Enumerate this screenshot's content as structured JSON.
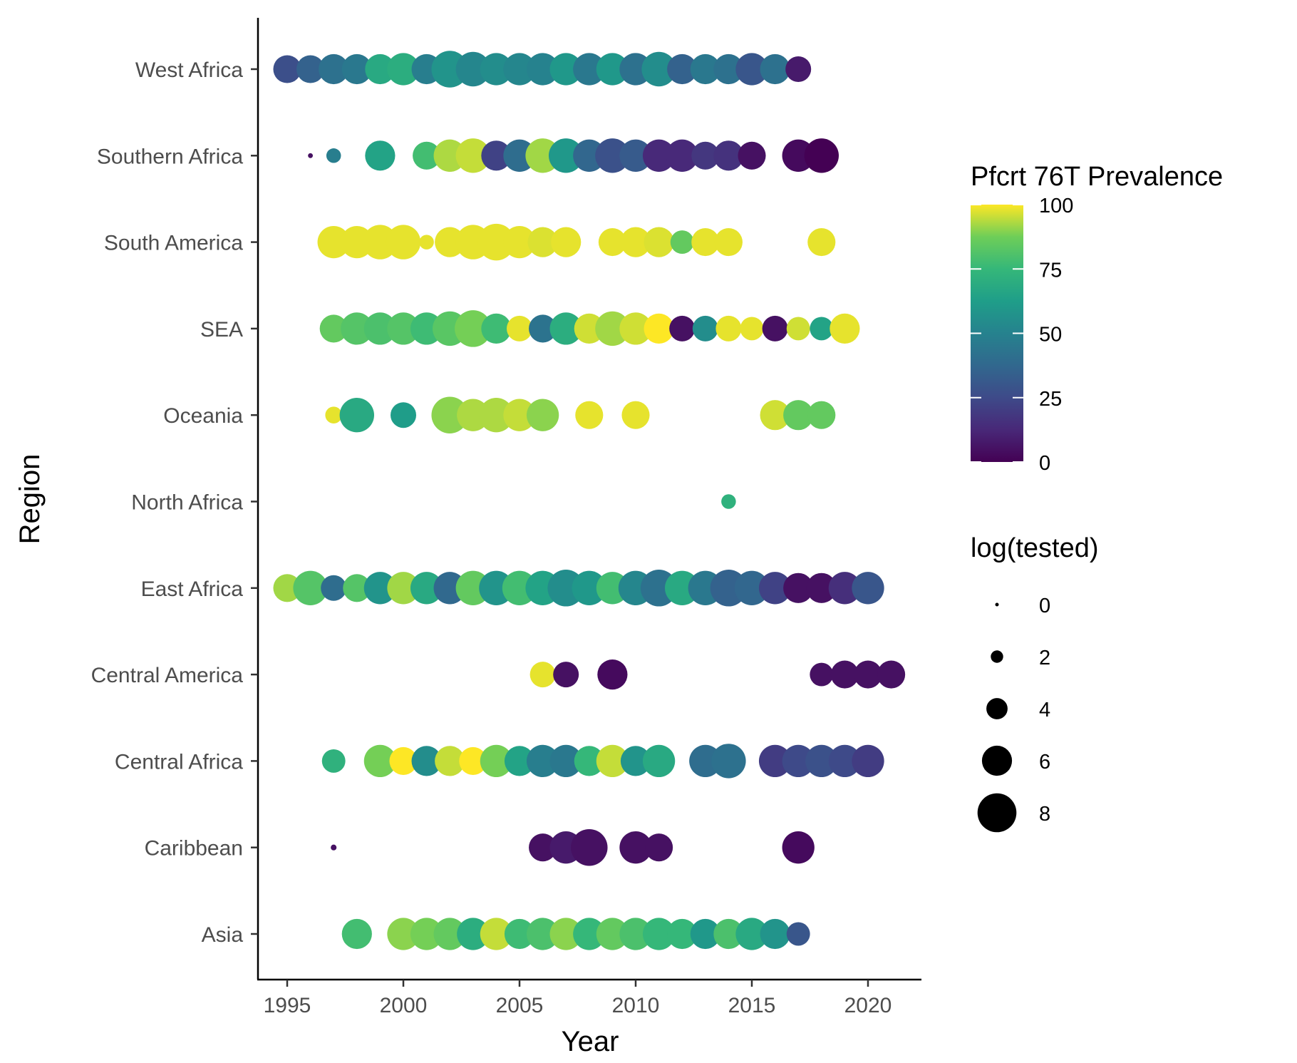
{
  "chart_data": {
    "type": "scatter",
    "xlabel": "Year",
    "ylabel": "Region",
    "xlim": [
      1993.8,
      2022.2
    ],
    "x_ticks": [
      1995,
      2000,
      2005,
      2010,
      2015,
      2020
    ],
    "x_tick_labels": [
      "1995",
      "2000",
      "2005",
      "2010",
      "2015",
      "2020"
    ],
    "categories": [
      "West Africa",
      "Southern Africa",
      "South America",
      "SEA",
      "Oceania",
      "North Africa",
      "East Africa",
      "Central America",
      "Central Africa",
      "Caribbean",
      "Asia"
    ],
    "grid": false,
    "legend_position": "right",
    "color_legend": {
      "title": "Pfcrt 76T Prevalence",
      "range": [
        0,
        100
      ],
      "ticks": [
        0,
        25,
        50,
        75,
        100
      ],
      "tick_labels": [
        "0",
        "25",
        "50",
        "75",
        "100"
      ],
      "palette": [
        "#440154",
        "#3b528b",
        "#21908c",
        "#5dc863",
        "#fde725"
      ]
    },
    "size_legend": {
      "title": "log(tested)",
      "values": [
        0,
        2,
        4,
        6,
        8
      ],
      "labels": [
        "0",
        "2",
        "4",
        "6",
        "8"
      ]
    },
    "series": [
      {
        "region": "West Africa",
        "points": [
          [
            1995,
            27,
            5.5
          ],
          [
            1996,
            35,
            5.5
          ],
          [
            1997,
            42,
            6
          ],
          [
            1998,
            45,
            6
          ],
          [
            1999,
            68,
            6
          ],
          [
            2000,
            70,
            6.5
          ],
          [
            2001,
            48,
            6
          ],
          [
            2002,
            58,
            7.5
          ],
          [
            2003,
            52,
            7
          ],
          [
            2004,
            55,
            6.5
          ],
          [
            2005,
            52,
            6.5
          ],
          [
            2006,
            50,
            6.5
          ],
          [
            2007,
            60,
            6.5
          ],
          [
            2008,
            45,
            6.5
          ],
          [
            2009,
            60,
            6.5
          ],
          [
            2010,
            42,
            6.5
          ],
          [
            2011,
            55,
            7
          ],
          [
            2012,
            35,
            6
          ],
          [
            2013,
            45,
            6
          ],
          [
            2014,
            42,
            6
          ],
          [
            2015,
            30,
            6.5
          ],
          [
            2016,
            42,
            6
          ],
          [
            2017,
            8,
            5
          ]
        ]
      },
      {
        "region": "Southern Africa",
        "points": [
          [
            1996,
            5,
            0.3
          ],
          [
            1997,
            48,
            2.5
          ],
          [
            1999,
            65,
            6
          ],
          [
            2001,
            78,
            5.5
          ],
          [
            2002,
            93,
            6.5
          ],
          [
            2003,
            95,
            7
          ],
          [
            2004,
            22,
            6
          ],
          [
            2005,
            40,
            6.5
          ],
          [
            2006,
            92,
            7
          ],
          [
            2007,
            60,
            7
          ],
          [
            2008,
            37,
            6.5
          ],
          [
            2009,
            28,
            7
          ],
          [
            2010,
            32,
            6.5
          ],
          [
            2011,
            13,
            6.5
          ],
          [
            2012,
            13,
            6.5
          ],
          [
            2013,
            18,
            5.5
          ],
          [
            2014,
            16,
            6
          ],
          [
            2015,
            5,
            5.5
          ],
          [
            2017,
            3,
            6.5
          ],
          [
            2018,
            0,
            7
          ]
        ]
      },
      {
        "region": "South America",
        "points": [
          [
            1997,
            98,
            6.5
          ],
          [
            1998,
            98,
            6.5
          ],
          [
            1999,
            98,
            7
          ],
          [
            2000,
            98,
            7
          ],
          [
            2001,
            98,
            2.5
          ],
          [
            2002,
            98,
            6
          ],
          [
            2003,
            98,
            7
          ],
          [
            2004,
            98,
            7.5
          ],
          [
            2005,
            98,
            6.5
          ],
          [
            2006,
            97,
            6
          ],
          [
            2007,
            98,
            6
          ],
          [
            2009,
            98,
            5.5
          ],
          [
            2010,
            98,
            6
          ],
          [
            2011,
            97,
            6
          ],
          [
            2012,
            85,
            4.5
          ],
          [
            2013,
            98,
            5.5
          ],
          [
            2014,
            98,
            5.5
          ],
          [
            2018,
            98,
            5.5
          ]
        ]
      },
      {
        "region": "SEA",
        "points": [
          [
            1997,
            85,
            5.5
          ],
          [
            1998,
            82,
            6.5
          ],
          [
            1999,
            80,
            6.5
          ],
          [
            2000,
            82,
            6.5
          ],
          [
            2001,
            77,
            6.5
          ],
          [
            2002,
            83,
            7
          ],
          [
            2003,
            88,
            7.5
          ],
          [
            2004,
            77,
            6
          ],
          [
            2005,
            98,
            5
          ],
          [
            2006,
            43,
            5.5
          ],
          [
            2007,
            70,
            6.5
          ],
          [
            2008,
            96,
            6
          ],
          [
            2009,
            92,
            7
          ],
          [
            2010,
            96,
            6.5
          ],
          [
            2011,
            100,
            6
          ],
          [
            2012,
            5,
            5
          ],
          [
            2013,
            55,
            5
          ],
          [
            2014,
            98,
            5
          ],
          [
            2015,
            98,
            4.5
          ],
          [
            2016,
            5,
            5
          ],
          [
            2017,
            96,
            4.5
          ],
          [
            2018,
            65,
            4.5
          ],
          [
            2019,
            98,
            6
          ]
        ]
      },
      {
        "region": "Oceania",
        "points": [
          [
            1997,
            98,
            3
          ],
          [
            1998,
            68,
            7
          ],
          [
            2000,
            62,
            5
          ],
          [
            2002,
            90,
            7.5
          ],
          [
            2003,
            93,
            6.5
          ],
          [
            2004,
            93,
            7
          ],
          [
            2005,
            95,
            6.5
          ],
          [
            2006,
            90,
            6.5
          ],
          [
            2008,
            98,
            5.5
          ],
          [
            2010,
            98,
            5.5
          ],
          [
            2016,
            96,
            6
          ],
          [
            2017,
            85,
            6
          ],
          [
            2018,
            85,
            5.5
          ]
        ]
      },
      {
        "region": "North Africa",
        "points": [
          [
            2014,
            72,
            2.5
          ]
        ]
      },
      {
        "region": "East Africa",
        "points": [
          [
            1995,
            92,
            5.5
          ],
          [
            1996,
            82,
            7
          ],
          [
            1997,
            40,
            5
          ],
          [
            1998,
            82,
            5.5
          ],
          [
            1999,
            58,
            6.5
          ],
          [
            2000,
            92,
            6.5
          ],
          [
            2001,
            68,
            6.5
          ],
          [
            2002,
            38,
            6.5
          ],
          [
            2003,
            85,
            7
          ],
          [
            2004,
            58,
            7
          ],
          [
            2005,
            78,
            7
          ],
          [
            2006,
            65,
            7
          ],
          [
            2007,
            55,
            7.5
          ],
          [
            2008,
            60,
            7
          ],
          [
            2009,
            78,
            6.5
          ],
          [
            2010,
            52,
            7
          ],
          [
            2011,
            42,
            7.5
          ],
          [
            2012,
            68,
            7
          ],
          [
            2013,
            45,
            7
          ],
          [
            2014,
            35,
            7.5
          ],
          [
            2015,
            37,
            7
          ],
          [
            2016,
            22,
            6.5
          ],
          [
            2017,
            5,
            6
          ],
          [
            2018,
            5,
            6
          ],
          [
            2019,
            15,
            6.5
          ],
          [
            2020,
            30,
            6.5
          ]
        ]
      },
      {
        "region": "Central America",
        "points": [
          [
            2006,
            98,
            5
          ],
          [
            2007,
            5,
            5
          ],
          [
            2009,
            3,
            6
          ],
          [
            2018,
            5,
            4.5
          ],
          [
            2019,
            5,
            5.5
          ],
          [
            2020,
            5,
            5.5
          ],
          [
            2021,
            5,
            5.5
          ]
        ]
      },
      {
        "region": "Central Africa",
        "points": [
          [
            1997,
            72,
            4.5
          ],
          [
            1999,
            88,
            6.5
          ],
          [
            2000,
            100,
            5.5
          ],
          [
            2001,
            55,
            6
          ],
          [
            2002,
            95,
            6
          ],
          [
            2003,
            100,
            5.5
          ],
          [
            2004,
            88,
            6.5
          ],
          [
            2005,
            65,
            6
          ],
          [
            2006,
            48,
            6.5
          ],
          [
            2007,
            45,
            6.5
          ],
          [
            2008,
            75,
            6
          ],
          [
            2009,
            95,
            6.5
          ],
          [
            2010,
            58,
            6
          ],
          [
            2011,
            68,
            6.5
          ],
          [
            2013,
            40,
            6.5
          ],
          [
            2014,
            42,
            7
          ],
          [
            2016,
            20,
            6.5
          ],
          [
            2017,
            25,
            6.5
          ],
          [
            2018,
            28,
            6.5
          ],
          [
            2019,
            25,
            6.5
          ],
          [
            2020,
            20,
            6.5
          ]
        ]
      },
      {
        "region": "Caribbean",
        "points": [
          [
            1997,
            5,
            0.5
          ],
          [
            2006,
            5,
            5.5
          ],
          [
            2007,
            8,
            6.5
          ],
          [
            2008,
            5,
            7.5
          ],
          [
            2010,
            5,
            6.5
          ],
          [
            2011,
            5,
            5.5
          ],
          [
            2017,
            3,
            6.5
          ]
        ]
      },
      {
        "region": "Asia",
        "points": [
          [
            1998,
            78,
            6
          ],
          [
            2000,
            90,
            6.5
          ],
          [
            2001,
            88,
            6.5
          ],
          [
            2002,
            85,
            6.5
          ],
          [
            2003,
            70,
            6.5
          ],
          [
            2004,
            95,
            6.5
          ],
          [
            2005,
            77,
            6
          ],
          [
            2006,
            80,
            6.5
          ],
          [
            2007,
            90,
            6.5
          ],
          [
            2008,
            75,
            6.5
          ],
          [
            2009,
            85,
            6.5
          ],
          [
            2010,
            80,
            6.5
          ],
          [
            2011,
            75,
            6.5
          ],
          [
            2012,
            75,
            6
          ],
          [
            2013,
            60,
            6
          ],
          [
            2014,
            80,
            6
          ],
          [
            2015,
            68,
            6.5
          ],
          [
            2016,
            58,
            6
          ],
          [
            2017,
            30,
            4.5
          ]
        ]
      }
    ]
  }
}
